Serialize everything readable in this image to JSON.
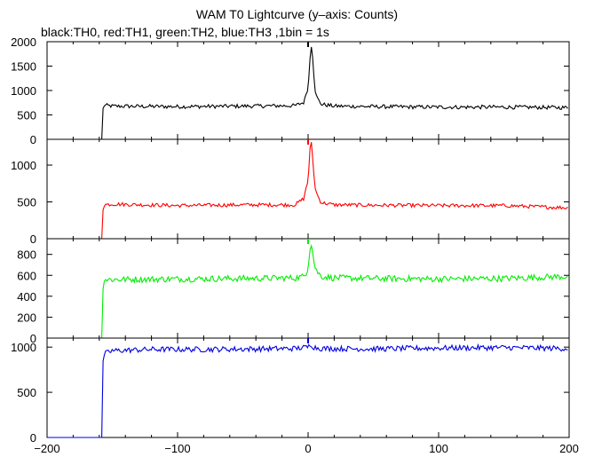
{
  "title": "WAM T0 Lightcurve (y–axis: Counts)",
  "subtitle": "black:TH0, red:TH1, green:TH2, blue:TH3 ,1bin = 1s",
  "chart_data": {
    "type": "line",
    "title": "WAM T0 Lightcurve (y–axis: Counts)",
    "subtitle": "black:TH0, red:TH1, green:TH2, blue:TH3 ,1bin = 1s",
    "xlim": [
      -200,
      200
    ],
    "x_ticks": [
      -200,
      -100,
      0,
      100,
      200
    ],
    "x_tick_labels": [
      "−200",
      "−100",
      "0",
      "100",
      "200"
    ],
    "grid": false,
    "panels": [
      {
        "name": "TH0",
        "color": "#000000",
        "ylim": [
          0,
          2000
        ],
        "y_ticks": [
          0,
          500,
          1000,
          1500,
          2000
        ],
        "points": [
          [
            -200,
            0
          ],
          [
            -158,
            0
          ],
          [
            -157,
            700
          ],
          [
            -150,
            680
          ],
          [
            -100,
            670
          ],
          [
            -50,
            680
          ],
          [
            -10,
            690
          ],
          [
            -3,
            760
          ],
          [
            -1,
            1000
          ],
          [
            0,
            1050
          ],
          [
            1,
            1400
          ],
          [
            2,
            1950
          ],
          [
            3,
            1900
          ],
          [
            4,
            1500
          ],
          [
            5,
            1100
          ],
          [
            6,
            900
          ],
          [
            8,
            800
          ],
          [
            10,
            720
          ],
          [
            20,
            680
          ],
          [
            50,
            670
          ],
          [
            100,
            660
          ],
          [
            150,
            660
          ],
          [
            199,
            650
          ]
        ],
        "noise_amplitude": 40
      },
      {
        "name": "TH1",
        "color": "#ff0000",
        "ylim": [
          0,
          1350
        ],
        "y_ticks": [
          0,
          500,
          1000
        ],
        "points": [
          [
            -200,
            0
          ],
          [
            -158,
            0
          ],
          [
            -157,
            460
          ],
          [
            -150,
            470
          ],
          [
            -100,
            450
          ],
          [
            -50,
            460
          ],
          [
            -10,
            460
          ],
          [
            -3,
            550
          ],
          [
            -1,
            750
          ],
          [
            0,
            760
          ],
          [
            1,
            1100
          ],
          [
            2,
            1330
          ],
          [
            3,
            1250
          ],
          [
            4,
            950
          ],
          [
            5,
            750
          ],
          [
            6,
            640
          ],
          [
            8,
            560
          ],
          [
            10,
            490
          ],
          [
            20,
            460
          ],
          [
            50,
            455
          ],
          [
            100,
            450
          ],
          [
            150,
            450
          ],
          [
            199,
            420
          ]
        ],
        "noise_amplitude": 25
      },
      {
        "name": "TH2",
        "color": "#00ee00",
        "ylim": [
          0,
          950
        ],
        "y_ticks": [
          0,
          200,
          400,
          600,
          800
        ],
        "points": [
          [
            -200,
            0
          ],
          [
            -158,
            0
          ],
          [
            -157,
            560
          ],
          [
            -150,
            560
          ],
          [
            -100,
            565
          ],
          [
            -50,
            570
          ],
          [
            -10,
            575
          ],
          [
            -3,
            590
          ],
          [
            -1,
            640
          ],
          [
            0,
            680
          ],
          [
            1,
            800
          ],
          [
            2,
            930
          ],
          [
            3,
            880
          ],
          [
            4,
            760
          ],
          [
            5,
            700
          ],
          [
            6,
            650
          ],
          [
            8,
            620
          ],
          [
            10,
            590
          ],
          [
            20,
            575
          ],
          [
            50,
            570
          ],
          [
            100,
            565
          ],
          [
            150,
            570
          ],
          [
            199,
            590
          ]
        ],
        "noise_amplitude": 30
      },
      {
        "name": "TH3",
        "color": "#0000dd",
        "ylim": [
          0,
          1100
        ],
        "y_ticks": [
          0,
          500,
          1000
        ],
        "points": [
          [
            -200,
            0
          ],
          [
            -158,
            0
          ],
          [
            -157,
            920
          ],
          [
            -150,
            960
          ],
          [
            -120,
            975
          ],
          [
            -80,
            975
          ],
          [
            -40,
            980
          ],
          [
            -10,
            985
          ],
          [
            0,
            1000
          ],
          [
            2,
            1040
          ],
          [
            4,
            1000
          ],
          [
            10,
            985
          ],
          [
            50,
            980
          ],
          [
            100,
            990
          ],
          [
            150,
            995
          ],
          [
            199,
            985
          ]
        ],
        "noise_amplitude": 30
      }
    ]
  }
}
